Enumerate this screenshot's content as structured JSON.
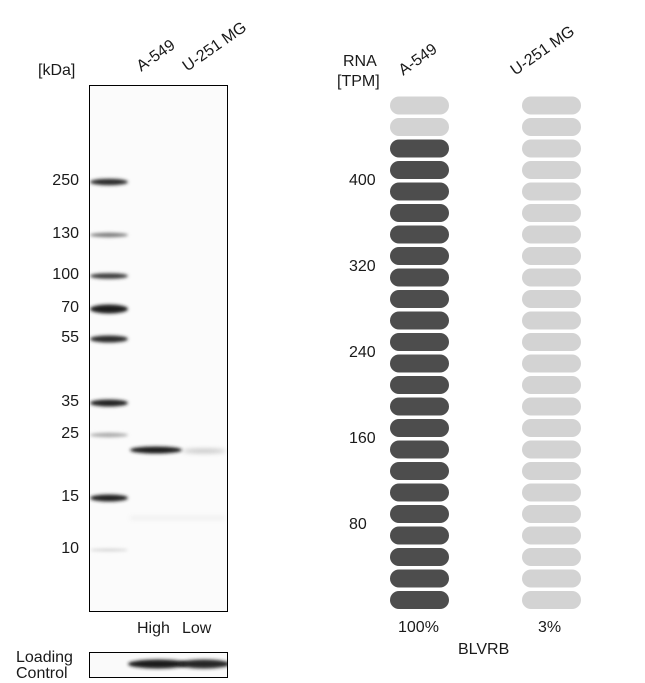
{
  "western_blot": {
    "unit_label": "[kDa]",
    "lane_labels": [
      "A-549",
      "U-251 MG"
    ],
    "markers": [
      "250",
      "130",
      "100",
      "70",
      "55",
      "35",
      "25",
      "15",
      "10"
    ],
    "expression_labels": [
      "High",
      "Low"
    ],
    "loading_control_label": "Loading Control",
    "colors": {
      "band": "#1c1c1c",
      "ladder": "#2a2a2a"
    }
  },
  "rna_chart": {
    "axis_title_line1": "RNA",
    "axis_title_line2": "[TPM]",
    "tick_labels": [
      "400",
      "320",
      "240",
      "160",
      "80"
    ],
    "gene": "BLVRB",
    "colors": {
      "filled": "#4d4d4d",
      "empty": "#d3d3d3"
    }
  },
  "chart_data": {
    "type": "bar",
    "categories": [
      "A-549",
      "U-251 MG"
    ],
    "values_percent": [
      100,
      3
    ],
    "value_labels": [
      "100%",
      "3%"
    ],
    "ylabel": "RNA [TPM]",
    "yticks": [
      80,
      160,
      240,
      320,
      400
    ],
    "segments_total": 24,
    "segments_filled": [
      22,
      0
    ],
    "colors": [
      "#4d4d4d",
      "#d3d3d3"
    ]
  }
}
